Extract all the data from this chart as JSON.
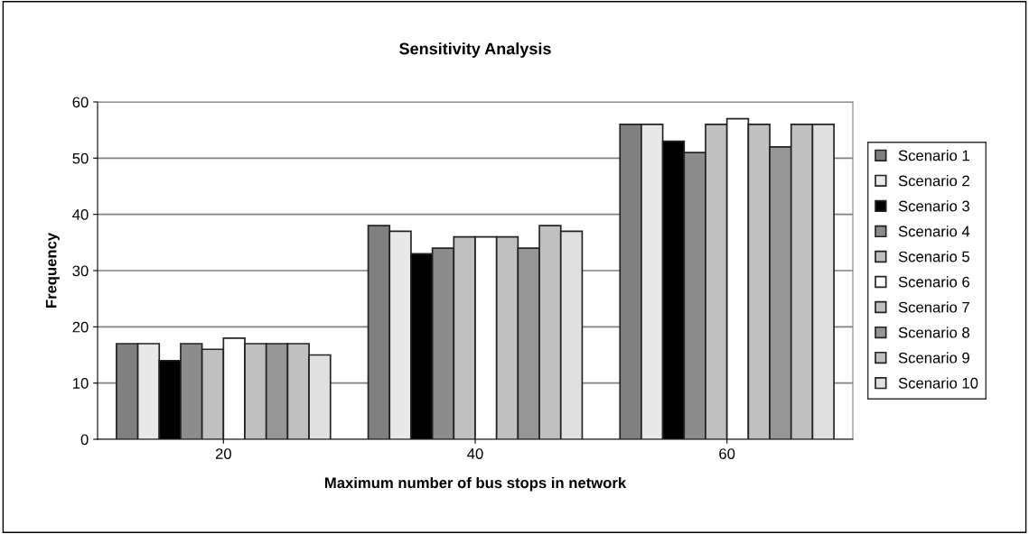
{
  "chart_data": {
    "type": "bar",
    "title": "Sensitivity Analysis",
    "xlabel": "Maximum number of bus stops in network",
    "ylabel": "Frequency",
    "categories": [
      "20",
      "40",
      "60"
    ],
    "series": [
      {
        "name": "Scenario 1",
        "color": "#808080",
        "values": [
          17,
          38,
          56
        ]
      },
      {
        "name": "Scenario 2",
        "color": "#e8e8e8",
        "values": [
          17,
          37,
          56
        ]
      },
      {
        "name": "Scenario 3",
        "color": "#000000",
        "values": [
          14,
          33,
          53
        ]
      },
      {
        "name": "Scenario 4",
        "color": "#8c8c8c",
        "values": [
          17,
          34,
          51
        ]
      },
      {
        "name": "Scenario 5",
        "color": "#c0c0c0",
        "values": [
          16,
          36,
          56
        ]
      },
      {
        "name": "Scenario 6",
        "color": "#ffffff",
        "values": [
          18,
          36,
          57
        ]
      },
      {
        "name": "Scenario 7",
        "color": "#c0c0c0",
        "values": [
          17,
          36,
          56
        ]
      },
      {
        "name": "Scenario 8",
        "color": "#969696",
        "values": [
          17,
          34,
          52
        ]
      },
      {
        "name": "Scenario 9",
        "color": "#c0c0c0",
        "values": [
          17,
          38,
          56
        ]
      },
      {
        "name": "Scenario 10",
        "color": "#e0e0e0",
        "values": [
          15,
          37,
          56
        ]
      }
    ],
    "ylim": [
      0,
      60
    ],
    "yticks": [
      0,
      10,
      20,
      30,
      40,
      50,
      60
    ],
    "grid": "y",
    "legend": "right"
  }
}
